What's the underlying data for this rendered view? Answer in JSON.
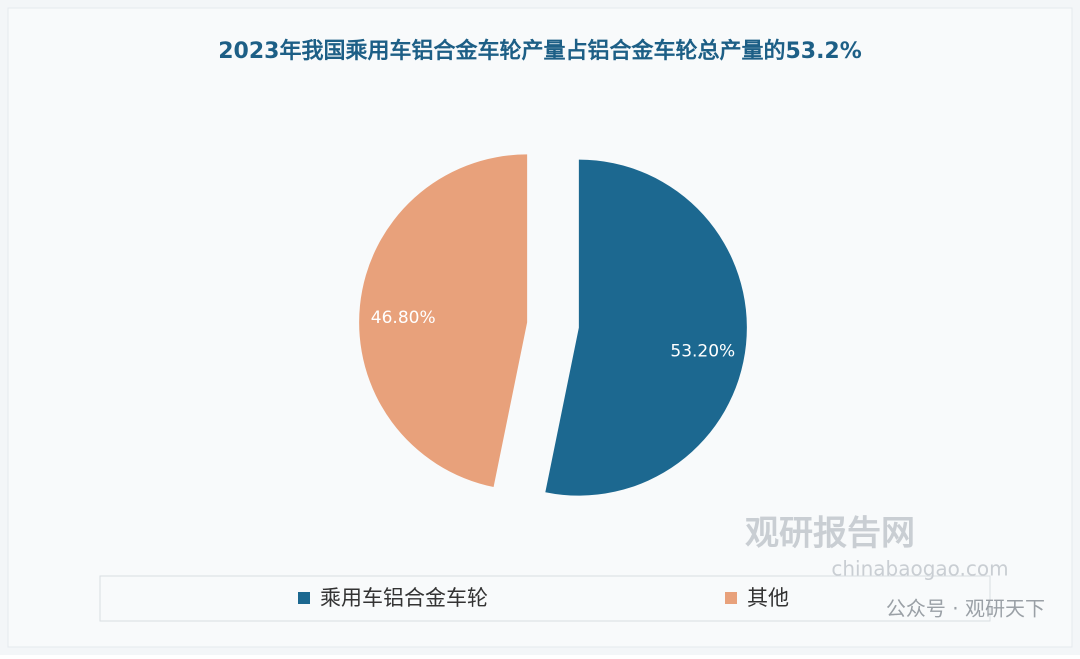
{
  "chart_data": {
    "type": "pie",
    "title": "2023年我国乘用车铝合金车轮产量占铝合金车轮总产量的53.2%",
    "categories": [
      "乘用车铝合金车轮",
      "其他"
    ],
    "values": [
      53.2,
      46.8
    ],
    "value_labels": [
      "53.20%",
      "46.80%"
    ],
    "colors": [
      "#1c6890",
      "#e8a17b"
    ],
    "legend": "bottom",
    "watermark": [
      "观研报告网",
      "chinabaogao.com"
    ],
    "footer": "公众号 · 观研天下"
  }
}
